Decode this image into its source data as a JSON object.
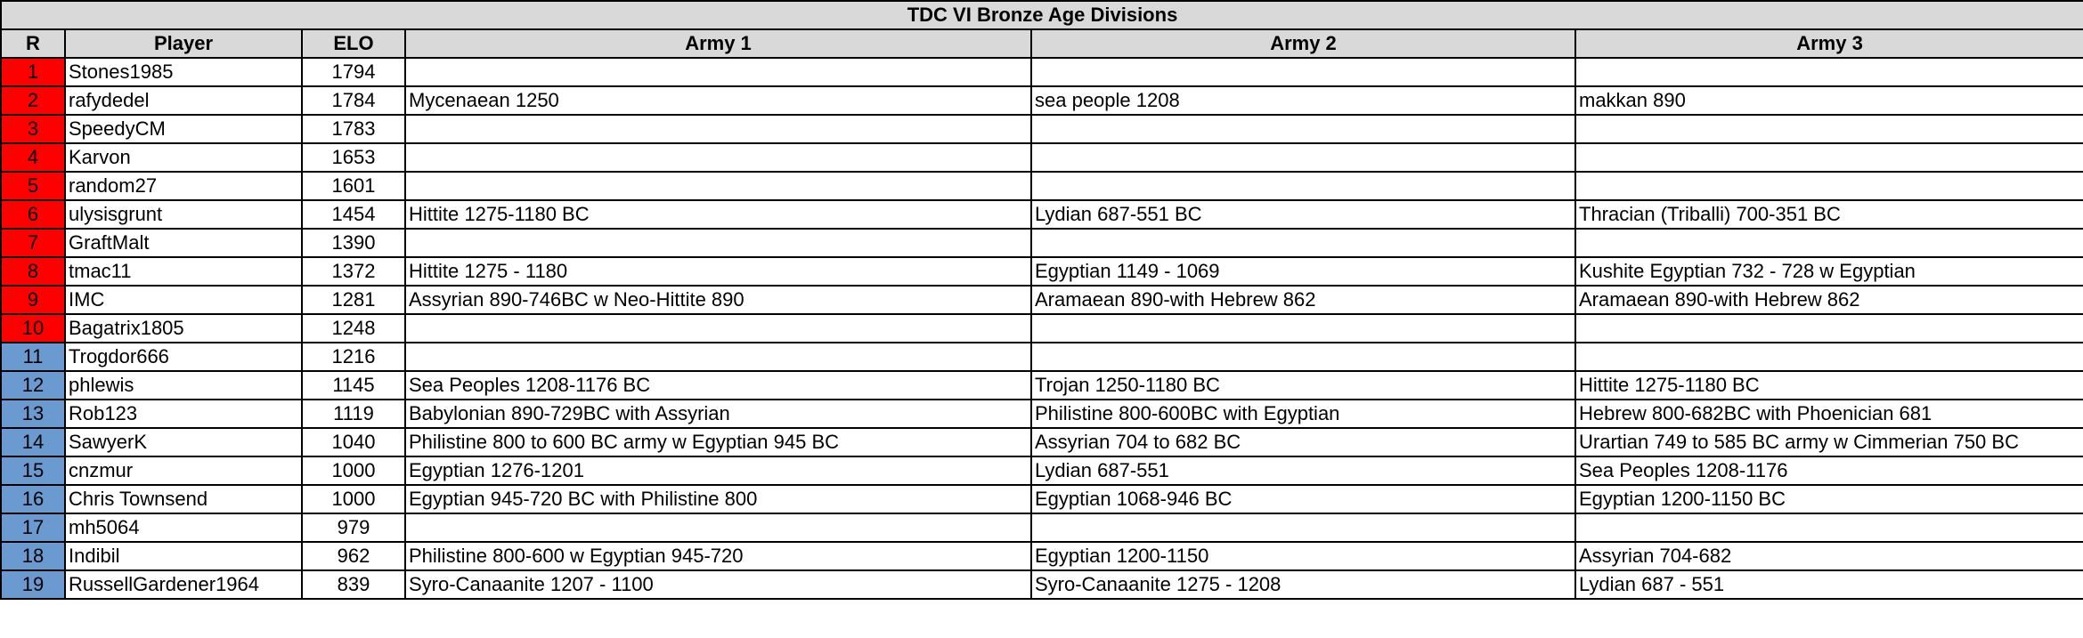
{
  "title": "TDC VI Bronze Age Divisions",
  "headers": {
    "rank": "R",
    "player": "Player",
    "elo": "ELO",
    "army1": "Army 1",
    "army2": "Army 2",
    "army3": "Army 3"
  },
  "colors": {
    "header_bg": "#d9d9d9",
    "division_1": "#ff0000",
    "division_2": "#6a9ad0"
  },
  "rows": [
    {
      "rank": "1",
      "division": 1,
      "player": "Stones1985",
      "elo": "1794",
      "army1": "",
      "army2": "",
      "army3": ""
    },
    {
      "rank": "2",
      "division": 1,
      "player": "rafydedel",
      "elo": "1784",
      "army1": "Mycenaean 1250",
      "army2": "sea people 1208",
      "army3": "makkan 890"
    },
    {
      "rank": "3",
      "division": 1,
      "player": "SpeedyCM",
      "elo": "1783",
      "army1": "",
      "army2": "",
      "army3": ""
    },
    {
      "rank": "4",
      "division": 1,
      "player": "Karvon",
      "elo": "1653",
      "army1": "",
      "army2": "",
      "army3": ""
    },
    {
      "rank": "5",
      "division": 1,
      "player": "random27",
      "elo": "1601",
      "army1": "",
      "army2": "",
      "army3": ""
    },
    {
      "rank": "6",
      "division": 1,
      "player": "ulysisgrunt",
      "elo": "1454",
      "army1": "Hittite 1275-1180 BC",
      "army2": "Lydian 687-551 BC",
      "army3": "Thracian (Triballi) 700-351 BC"
    },
    {
      "rank": "7",
      "division": 1,
      "player": "GraftMalt",
      "elo": "1390",
      "army1": "",
      "army2": "",
      "army3": ""
    },
    {
      "rank": "8",
      "division": 1,
      "player": "tmac11",
      "elo": "1372",
      "army1": "Hittite 1275 - 1180",
      "army2": "Egyptian 1149 - 1069",
      "army3": "Kushite Egyptian 732 - 728 w Egyptian"
    },
    {
      "rank": "9",
      "division": 1,
      "player": "IMC",
      "elo": "1281",
      "army1": "Assyrian 890-746BC w Neo-Hittite 890",
      "army2": "Aramaean 890-with Hebrew 862",
      "army3": "Aramaean 890-with Hebrew 862"
    },
    {
      "rank": "10",
      "division": 1,
      "player": "Bagatrix1805",
      "elo": "1248",
      "army1": "",
      "army2": "",
      "army3": ""
    },
    {
      "rank": "11",
      "division": 2,
      "player": "Trogdor666",
      "elo": "1216",
      "army1": "",
      "army2": "",
      "army3": ""
    },
    {
      "rank": "12",
      "division": 2,
      "player": "phlewis",
      "elo": "1145",
      "army1": "Sea Peoples 1208-1176 BC",
      "army2": "Trojan 1250-1180 BC",
      "army3": "Hittite 1275-1180 BC"
    },
    {
      "rank": "13",
      "division": 2,
      "player": "Rob123",
      "elo": "1119",
      "army1": "Babylonian 890-729BC with Assyrian",
      "army2": "Philistine 800-600BC with Egyptian",
      "army3": "Hebrew 800-682BC with Phoenician 681"
    },
    {
      "rank": "14",
      "division": 2,
      "player": "SawyerK",
      "elo": "1040",
      "army1": "Philistine 800 to 600 BC army w Egyptian 945 BC",
      "army2": "Assyrian 704 to 682 BC",
      "army3": "Urartian 749 to 585 BC army w Cimmerian 750 BC"
    },
    {
      "rank": "15",
      "division": 2,
      "player": "cnzmur",
      "elo": "1000",
      "army1": "Egyptian 1276-1201",
      "army2": "Lydian 687-551",
      "army3": "Sea Peoples 1208-1176"
    },
    {
      "rank": "16",
      "division": 2,
      "player": "Chris Townsend",
      "elo": "1000",
      "army1": "Egyptian 945-720 BC with Philistine 800",
      "army2": "Egyptian 1068-946 BC",
      "army3": "Egyptian 1200-1150 BC"
    },
    {
      "rank": "17",
      "division": 2,
      "player": "mh5064",
      "elo": "979",
      "army1": "",
      "army2": "",
      "army3": ""
    },
    {
      "rank": "18",
      "division": 2,
      "player": "Indibil",
      "elo": "962",
      "army1": "Philistine 800-600 w Egyptian 945-720",
      "army2": "Egyptian 1200-1150",
      "army3": "Assyrian 704-682"
    },
    {
      "rank": "19",
      "division": 2,
      "player": "RussellGardener1964",
      "elo": "839",
      "army1": "Syro-Canaanite 1207 - 1100",
      "army2": "Syro-Canaanite 1275 - 1208",
      "army3": "Lydian 687 - 551"
    }
  ]
}
